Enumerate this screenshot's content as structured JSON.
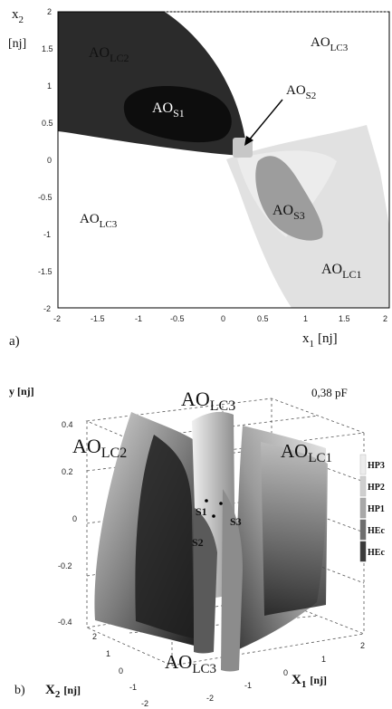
{
  "panel_a": {
    "tag": "a)",
    "y_axis": {
      "main": "x",
      "sub": "2",
      "unit": "[nj]"
    },
    "x_axis": {
      "main": "x",
      "sub": "1",
      "unit": "[nj]"
    },
    "x_ticks": [
      "-2",
      "-1.5",
      "-1",
      "-0.5",
      "0",
      "0.5",
      "1",
      "1.5",
      "2"
    ],
    "y_ticks": [
      "2",
      "1.5",
      "1",
      "0.5",
      "0",
      "-0.5",
      "-1",
      "-1.5",
      "-2"
    ],
    "regions": [
      {
        "main": "AO",
        "sub": "LC2"
      },
      {
        "main": "AO",
        "sub": "LC3"
      },
      {
        "main": "AO",
        "sub": "S2"
      },
      {
        "main": "AO",
        "sub": "S1"
      },
      {
        "main": "AO",
        "sub": "S3"
      },
      {
        "main": "AO",
        "sub": "LC3"
      },
      {
        "main": "AO",
        "sub": "LC1"
      }
    ],
    "colors": {
      "dark": "#2b2b2b",
      "darkest": "#0d0d0d",
      "light": "#e1e1e1",
      "mid": "#9d9d9d",
      "lightgray": "#c7c7c7"
    }
  },
  "panel_b": {
    "tag": "b)",
    "y_axis": {
      "main": "y",
      "unit": "[nj]"
    },
    "x1_axis": {
      "main": "X",
      "sub": "1",
      "unit": "[nj]"
    },
    "x2_axis": {
      "main": "X",
      "sub": "2",
      "unit": "[nj]"
    },
    "capacitance": "0,38 pF",
    "y_ticks": [
      "0.4",
      "0.2",
      "0",
      "-0.2",
      "-0.4"
    ],
    "x1_ticks": [
      "-2",
      "-1",
      "0",
      "1",
      "2"
    ],
    "x2_ticks": [
      "2",
      "1",
      "0",
      "-1",
      "-2"
    ],
    "regions": [
      {
        "main": "AO",
        "sub": "LC3"
      },
      {
        "main": "AO",
        "sub": "LC2"
      },
      {
        "main": "AO",
        "sub": "LC1"
      },
      {
        "main": "AO",
        "sub": "LC3"
      }
    ],
    "points": [
      "S1",
      "S2",
      "S3"
    ],
    "legend": [
      "HP3",
      "HP2",
      "HP1",
      "HEc",
      "HEc"
    ]
  }
}
